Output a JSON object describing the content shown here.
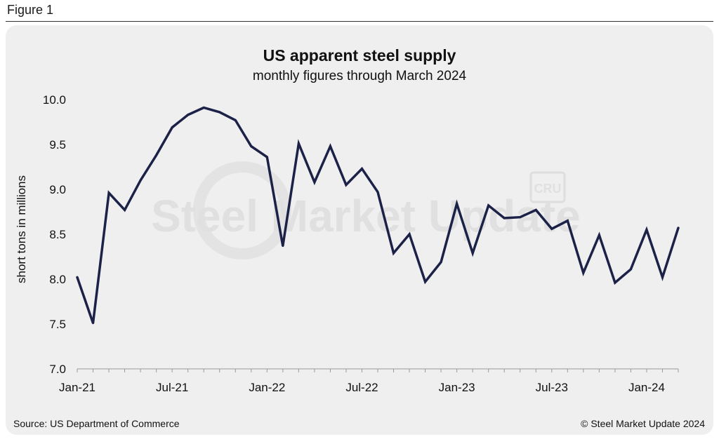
{
  "figure_label": "Figure 1",
  "footer": {
    "source": "Source: US Department of Commerce",
    "copyright": "© Steel Market Update 2024"
  },
  "watermark": {
    "brand": "Steel Market Update",
    "logo": "CRU"
  },
  "colors": {
    "line": "#1c2148",
    "panel": "#efefef",
    "watermark": "#e0e0e0"
  },
  "chart_data": {
    "type": "line",
    "title": "US apparent steel supply",
    "subtitle": "monthly figures through March 2024",
    "xlabel": "",
    "ylabel": "short tons in millions",
    "ylim": [
      7.0,
      10.0
    ],
    "yticks": [
      7.0,
      7.5,
      8.0,
      8.5,
      9.0,
      9.5,
      10.0
    ],
    "ytick_labels": [
      "7.0",
      "7.5",
      "8.0",
      "8.5",
      "9.0",
      "9.5",
      "10.0"
    ],
    "x": [
      "Jan-21",
      "Feb-21",
      "Mar-21",
      "Apr-21",
      "May-21",
      "Jun-21",
      "Jul-21",
      "Aug-21",
      "Sep-21",
      "Oct-21",
      "Nov-21",
      "Dec-21",
      "Jan-22",
      "Feb-22",
      "Mar-22",
      "Apr-22",
      "May-22",
      "Jun-22",
      "Jul-22",
      "Aug-22",
      "Sep-22",
      "Oct-22",
      "Nov-22",
      "Dec-22",
      "Jan-23",
      "Feb-23",
      "Mar-23",
      "Apr-23",
      "May-23",
      "Jun-23",
      "Jul-23",
      "Aug-23",
      "Sep-23",
      "Oct-23",
      "Nov-23",
      "Dec-23",
      "Jan-24",
      "Feb-24",
      "Mar-24"
    ],
    "xtick_labels": [
      {
        "index": 0,
        "label": "Jan-21"
      },
      {
        "index": 6,
        "label": "Jul-21"
      },
      {
        "index": 12,
        "label": "Jan-22"
      },
      {
        "index": 18,
        "label": "Jul-22"
      },
      {
        "index": 24,
        "label": "Jan-23"
      },
      {
        "index": 30,
        "label": "Jul-23"
      },
      {
        "index": 36,
        "label": "Jan-24"
      }
    ],
    "series": [
      {
        "name": "US apparent steel supply",
        "values": [
          8.02,
          7.51,
          8.96,
          8.77,
          9.1,
          9.38,
          9.69,
          9.83,
          9.91,
          9.86,
          9.77,
          9.48,
          9.36,
          8.37,
          9.51,
          9.08,
          9.48,
          9.05,
          9.23,
          8.97,
          8.29,
          8.5,
          7.97,
          8.19,
          8.84,
          8.29,
          8.82,
          8.68,
          8.69,
          8.77,
          8.56,
          8.65,
          8.07,
          8.49,
          7.96,
          8.11,
          8.55,
          8.02,
          8.57
        ]
      }
    ]
  }
}
